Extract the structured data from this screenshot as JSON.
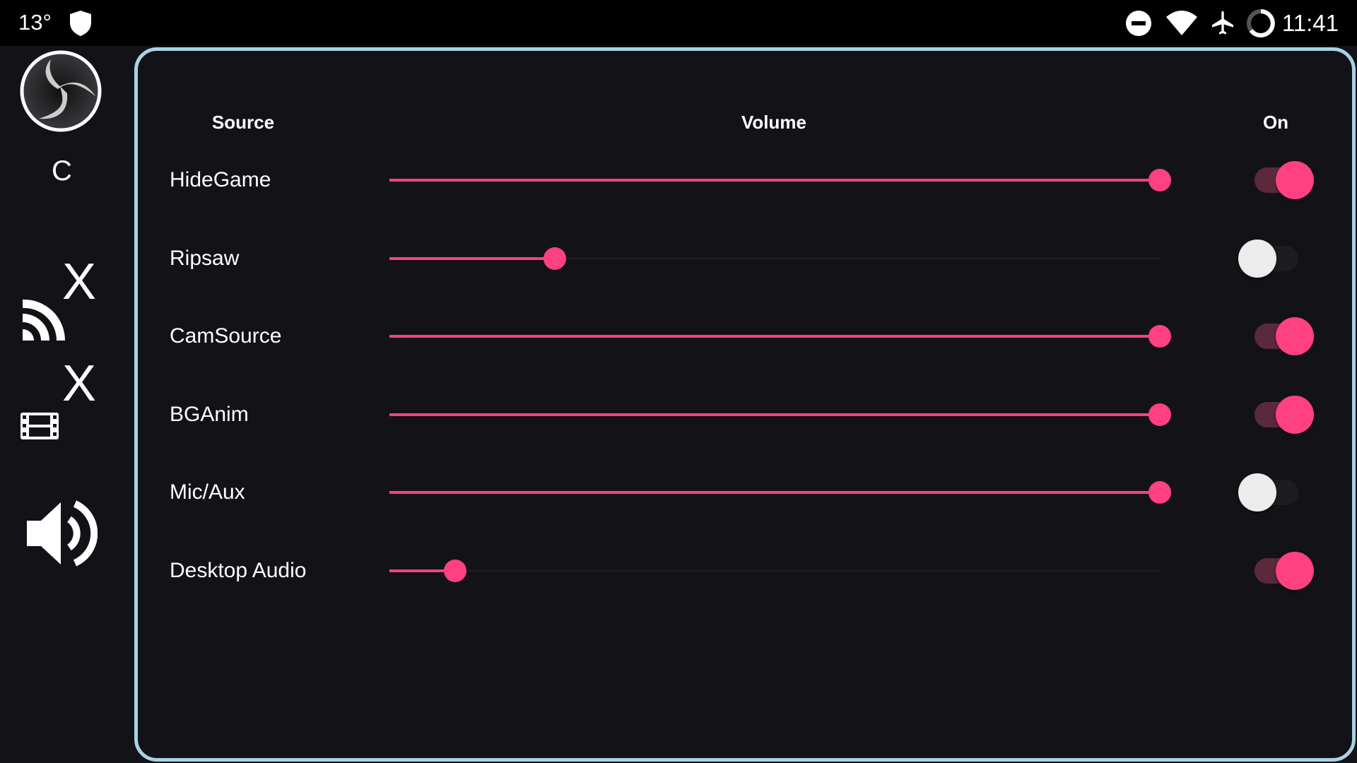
{
  "status_bar": {
    "temperature": "13°",
    "time": "11:41",
    "icons": [
      "shield-icon",
      "do-not-disturb-icon",
      "wifi-icon",
      "airplane-mode-icon",
      "battery-ring-icon"
    ]
  },
  "sidebar": {
    "logo": "obs-logo",
    "scene_label": "C",
    "stream_status": "X",
    "record_status": "X",
    "icons": [
      "cast-icon",
      "film-icon",
      "volume-icon"
    ]
  },
  "mixer": {
    "headers": {
      "source": "Source",
      "volume": "Volume",
      "on": "On"
    },
    "accent_color": "#ff4081",
    "rows": [
      {
        "name": "HideGame",
        "volume": 100,
        "on": true
      },
      {
        "name": "Ripsaw",
        "volume": 21.5,
        "on": false
      },
      {
        "name": "CamSource",
        "volume": 100,
        "on": true
      },
      {
        "name": "BGAnim",
        "volume": 100,
        "on": true
      },
      {
        "name": "Mic/Aux",
        "volume": 100,
        "on": false
      },
      {
        "name": "Desktop Audio",
        "volume": 8.5,
        "on": true
      }
    ]
  }
}
